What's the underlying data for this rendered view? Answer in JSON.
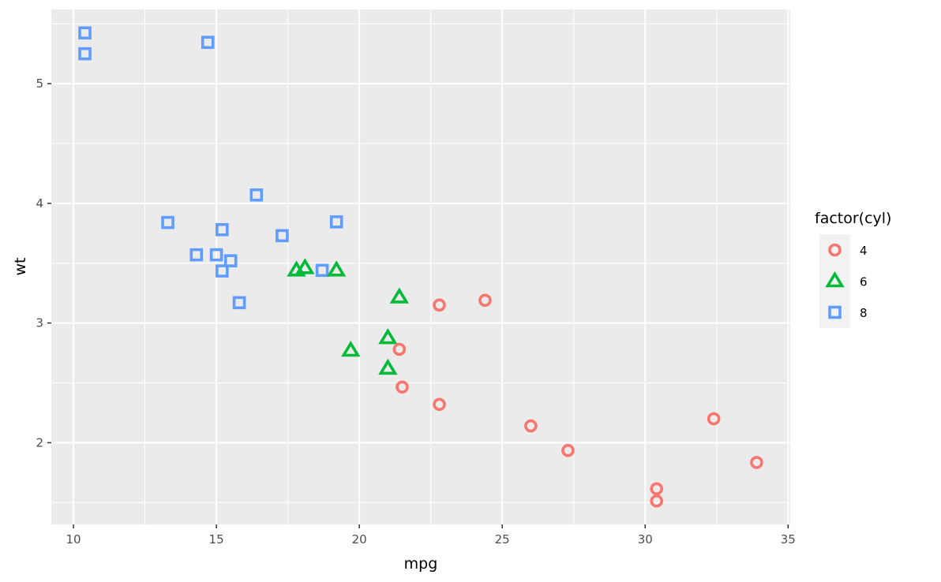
{
  "chart_data": {
    "type": "scatter",
    "title": "",
    "xlabel": "mpg",
    "ylabel": "wt",
    "xlim": [
      9.225,
      35.075
    ],
    "ylim": [
      1.317,
      5.62
    ],
    "x_ticks": [
      10,
      15,
      20,
      25,
      30,
      35
    ],
    "y_ticks": [
      2,
      3,
      4,
      5
    ],
    "grid": true,
    "legend": {
      "title": "factor(cyl)",
      "placement": "right",
      "entries": [
        "4",
        "6",
        "8"
      ]
    },
    "colors": {
      "4": "#F8766D",
      "6": "#00BA38",
      "8": "#619CFF"
    },
    "shapes": {
      "4": "circle-open",
      "6": "triangle-open",
      "8": "square-open"
    },
    "points": [
      {
        "mpg": 21.0,
        "wt": 2.62,
        "cyl": "6"
      },
      {
        "mpg": 21.0,
        "wt": 2.875,
        "cyl": "6"
      },
      {
        "mpg": 22.8,
        "wt": 2.32,
        "cyl": "4"
      },
      {
        "mpg": 21.4,
        "wt": 3.215,
        "cyl": "6"
      },
      {
        "mpg": 18.7,
        "wt": 3.44,
        "cyl": "8"
      },
      {
        "mpg": 18.1,
        "wt": 3.46,
        "cyl": "6"
      },
      {
        "mpg": 14.3,
        "wt": 3.57,
        "cyl": "8"
      },
      {
        "mpg": 24.4,
        "wt": 3.19,
        "cyl": "4"
      },
      {
        "mpg": 22.8,
        "wt": 3.15,
        "cyl": "4"
      },
      {
        "mpg": 19.2,
        "wt": 3.44,
        "cyl": "6"
      },
      {
        "mpg": 17.8,
        "wt": 3.44,
        "cyl": "6"
      },
      {
        "mpg": 16.4,
        "wt": 4.07,
        "cyl": "8"
      },
      {
        "mpg": 17.3,
        "wt": 3.73,
        "cyl": "8"
      },
      {
        "mpg": 15.2,
        "wt": 3.78,
        "cyl": "8"
      },
      {
        "mpg": 10.4,
        "wt": 5.25,
        "cyl": "8"
      },
      {
        "mpg": 10.4,
        "wt": 5.424,
        "cyl": "8"
      },
      {
        "mpg": 14.7,
        "wt": 5.345,
        "cyl": "8"
      },
      {
        "mpg": 32.4,
        "wt": 2.2,
        "cyl": "4"
      },
      {
        "mpg": 30.4,
        "wt": 1.615,
        "cyl": "4"
      },
      {
        "mpg": 33.9,
        "wt": 1.835,
        "cyl": "4"
      },
      {
        "mpg": 21.5,
        "wt": 2.465,
        "cyl": "4"
      },
      {
        "mpg": 15.5,
        "wt": 3.52,
        "cyl": "8"
      },
      {
        "mpg": 15.2,
        "wt": 3.435,
        "cyl": "8"
      },
      {
        "mpg": 13.3,
        "wt": 3.84,
        "cyl": "8"
      },
      {
        "mpg": 19.2,
        "wt": 3.845,
        "cyl": "8"
      },
      {
        "mpg": 27.3,
        "wt": 1.935,
        "cyl": "4"
      },
      {
        "mpg": 26.0,
        "wt": 2.14,
        "cyl": "4"
      },
      {
        "mpg": 30.4,
        "wt": 1.513,
        "cyl": "4"
      },
      {
        "mpg": 15.8,
        "wt": 3.17,
        "cyl": "8"
      },
      {
        "mpg": 19.7,
        "wt": 2.77,
        "cyl": "6"
      },
      {
        "mpg": 15.0,
        "wt": 3.57,
        "cyl": "8"
      },
      {
        "mpg": 21.4,
        "wt": 2.78,
        "cyl": "4"
      }
    ]
  }
}
